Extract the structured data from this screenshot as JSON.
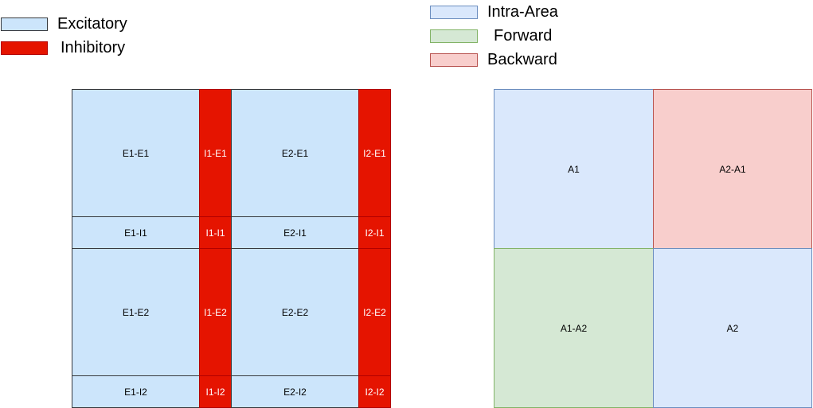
{
  "legend_left": [
    {
      "label": "Excitatory",
      "color": "#cce5fb",
      "border": "#36393d"
    },
    {
      "label": "Inhibitory",
      "color": "#e51400",
      "border": "#b20000"
    }
  ],
  "legend_right": [
    {
      "label": "Intra-Area",
      "color": "#dae8fc",
      "border": "#6c8ebf"
    },
    {
      "label": "Forward",
      "color": "#d5e8d4",
      "border": "#82b366"
    },
    {
      "label": "Backward",
      "color": "#f8cecc",
      "border": "#b85450"
    }
  ],
  "left_matrix": {
    "rows": [
      [
        "E1-E1",
        "I1-E1",
        "E2-E1",
        "I2-E1"
      ],
      [
        "E1-I1",
        "I1-I1",
        "E2-I1",
        "I2-I1"
      ],
      [
        "E1-E2",
        "I1-E2",
        "E2-E2",
        "I2-E2"
      ],
      [
        "E1-I2",
        "I1-I2",
        "E2-I2",
        "I2-I2"
      ]
    ]
  },
  "right_matrix": {
    "rows": [
      [
        "A1",
        "A2-A1"
      ],
      [
        "A1-A2",
        "A2"
      ]
    ]
  }
}
